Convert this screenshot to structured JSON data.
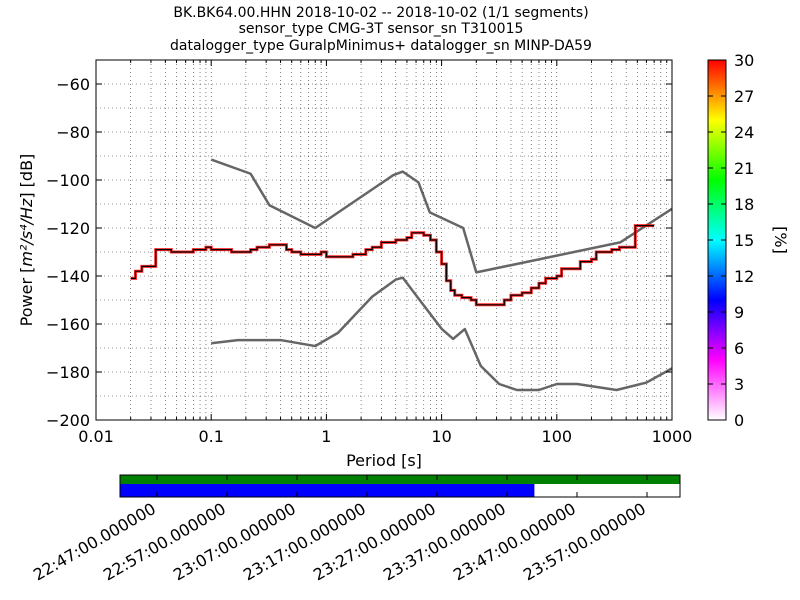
{
  "title_lines": [
    "BK.BK64.00.HHN   2018-10-02 -- 2018-10-02  (1/1 segments)",
    "sensor_type CMG-3T sensor_sn T310015",
    "datalogger_type GuralpMinimus+ datalogger_sn MINP-DA59"
  ],
  "chart_data": {
    "type": "line",
    "xscale": "log",
    "xlabel": "Period [s]",
    "ylabel_prefix": "Power [",
    "ylabel_math": "m²/s⁴/Hz",
    "ylabel_suffix": "] [dB]",
    "xlim": [
      0.01,
      1000
    ],
    "ylim": [
      -200,
      -50
    ],
    "xtick_labels": [
      {
        "value": 0.01,
        "label": "0.01"
      },
      {
        "value": 0.1,
        "label": "0.1"
      },
      {
        "value": 1,
        "label": "1"
      },
      {
        "value": 10,
        "label": "10"
      },
      {
        "value": 100,
        "label": "100"
      },
      {
        "value": 1000,
        "label": "1000"
      }
    ],
    "ytick_labels": [
      {
        "value": -60,
        "label": "−60"
      },
      {
        "value": -80,
        "label": "−80"
      },
      {
        "value": -100,
        "label": "−100"
      },
      {
        "value": -120,
        "label": "−120"
      },
      {
        "value": -140,
        "label": "−140"
      },
      {
        "value": -160,
        "label": "−160"
      },
      {
        "value": -180,
        "label": "−180"
      },
      {
        "value": -200,
        "label": "−200"
      }
    ],
    "grid": true,
    "series": [
      {
        "role": "high-noise-model",
        "color": "#666666",
        "points": [
          [
            0.1,
            -91.5
          ],
          [
            0.22,
            -97.4
          ],
          [
            0.32,
            -110.5
          ],
          [
            0.8,
            -120
          ],
          [
            3.8,
            -98
          ],
          [
            4.6,
            -96.5
          ],
          [
            6.3,
            -101
          ],
          [
            7.9,
            -113.5
          ],
          [
            15.4,
            -120
          ],
          [
            20,
            -138.5
          ],
          [
            354.8,
            -126
          ],
          [
            1000,
            -112
          ]
        ]
      },
      {
        "role": "low-noise-model",
        "color": "#666666",
        "points": [
          [
            0.1,
            -168
          ],
          [
            0.17,
            -166.7
          ],
          [
            0.4,
            -166.7
          ],
          [
            0.8,
            -169.2
          ],
          [
            1.26,
            -163.7
          ],
          [
            2.5,
            -148.6
          ],
          [
            4.0,
            -141.5
          ],
          [
            4.6,
            -140.7
          ],
          [
            6.3,
            -149.4
          ],
          [
            10,
            -162
          ],
          [
            12.6,
            -166.2
          ],
          [
            15.9,
            -162.1
          ],
          [
            21.9,
            -177.5
          ],
          [
            31.6,
            -185
          ],
          [
            45,
            -187.5
          ],
          [
            70,
            -187.5
          ],
          [
            100,
            -185
          ],
          [
            150,
            -185
          ],
          [
            330,
            -187.5
          ],
          [
            600,
            -184.4
          ],
          [
            1000,
            -178.5
          ]
        ]
      },
      {
        "role": "psd-mode",
        "color": "#000000",
        "highlight_color": "#ff0000",
        "points": [
          [
            0.02,
            -141
          ],
          [
            0.022,
            -138
          ],
          [
            0.025,
            -136
          ],
          [
            0.03,
            -136
          ],
          [
            0.033,
            -129
          ],
          [
            0.04,
            -129
          ],
          [
            0.045,
            -130
          ],
          [
            0.06,
            -130
          ],
          [
            0.07,
            -129
          ],
          [
            0.085,
            -129
          ],
          [
            0.09,
            -128
          ],
          [
            0.1,
            -129
          ],
          [
            0.14,
            -129
          ],
          [
            0.15,
            -130
          ],
          [
            0.2,
            -130
          ],
          [
            0.22,
            -129
          ],
          [
            0.25,
            -128
          ],
          [
            0.3,
            -128
          ],
          [
            0.32,
            -127
          ],
          [
            0.4,
            -127
          ],
          [
            0.45,
            -129
          ],
          [
            0.5,
            -130
          ],
          [
            0.6,
            -131
          ],
          [
            0.8,
            -131
          ],
          [
            0.9,
            -130
          ],
          [
            1.0,
            -132
          ],
          [
            1.5,
            -132
          ],
          [
            1.7,
            -131
          ],
          [
            2.0,
            -131
          ],
          [
            2.2,
            -129
          ],
          [
            2.5,
            -128
          ],
          [
            3.0,
            -126
          ],
          [
            3.5,
            -126
          ],
          [
            4.0,
            -125
          ],
          [
            4.5,
            -125
          ],
          [
            5.0,
            -124
          ],
          [
            5.5,
            -122
          ],
          [
            6.0,
            -122
          ],
          [
            7.0,
            -123
          ],
          [
            8.0,
            -125
          ],
          [
            9.0,
            -130
          ],
          [
            10.0,
            -135
          ],
          [
            11.0,
            -142
          ],
          [
            12.0,
            -146
          ],
          [
            13.0,
            -148
          ],
          [
            15.0,
            -149
          ],
          [
            18.0,
            -150
          ],
          [
            20.0,
            -152
          ],
          [
            30.0,
            -152
          ],
          [
            35.0,
            -150
          ],
          [
            40.0,
            -148
          ],
          [
            50.0,
            -147
          ],
          [
            60.0,
            -145
          ],
          [
            70.0,
            -143
          ],
          [
            80.0,
            -141
          ],
          [
            100.0,
            -140
          ],
          [
            110.0,
            -137
          ],
          [
            150.0,
            -137
          ],
          [
            160.0,
            -134
          ],
          [
            200.0,
            -133
          ],
          [
            220.0,
            -130
          ],
          [
            300.0,
            -129
          ],
          [
            350.0,
            -128
          ],
          [
            450.0,
            -128
          ],
          [
            480.0,
            -119
          ],
          [
            700.0,
            -119
          ]
        ]
      }
    ],
    "colorbar": {
      "label": "[%]",
      "min": 0,
      "max": 30,
      "tick_labels": [
        "0",
        "3",
        "6",
        "9",
        "12",
        "15",
        "18",
        "21",
        "24",
        "27",
        "30"
      ],
      "colormap": "pqlx",
      "stops": [
        "#ffffff",
        "#ff00ff",
        "#0000ff",
        "#00ffff",
        "#00ff00",
        "#ffff00",
        "#ff0000"
      ]
    },
    "time_bar": {
      "time_labels": [
        "22:47:00.000000",
        "22:57:00.000000",
        "23:07:00.000000",
        "23:17:00.000000",
        "23:27:00.000000",
        "23:37:00.000000",
        "23:47:00.000000",
        "23:57:00.000000"
      ],
      "data_fraction": 1.0,
      "used_fraction": 0.74,
      "data_color": "#008000",
      "used_color": "#0000ff"
    }
  }
}
